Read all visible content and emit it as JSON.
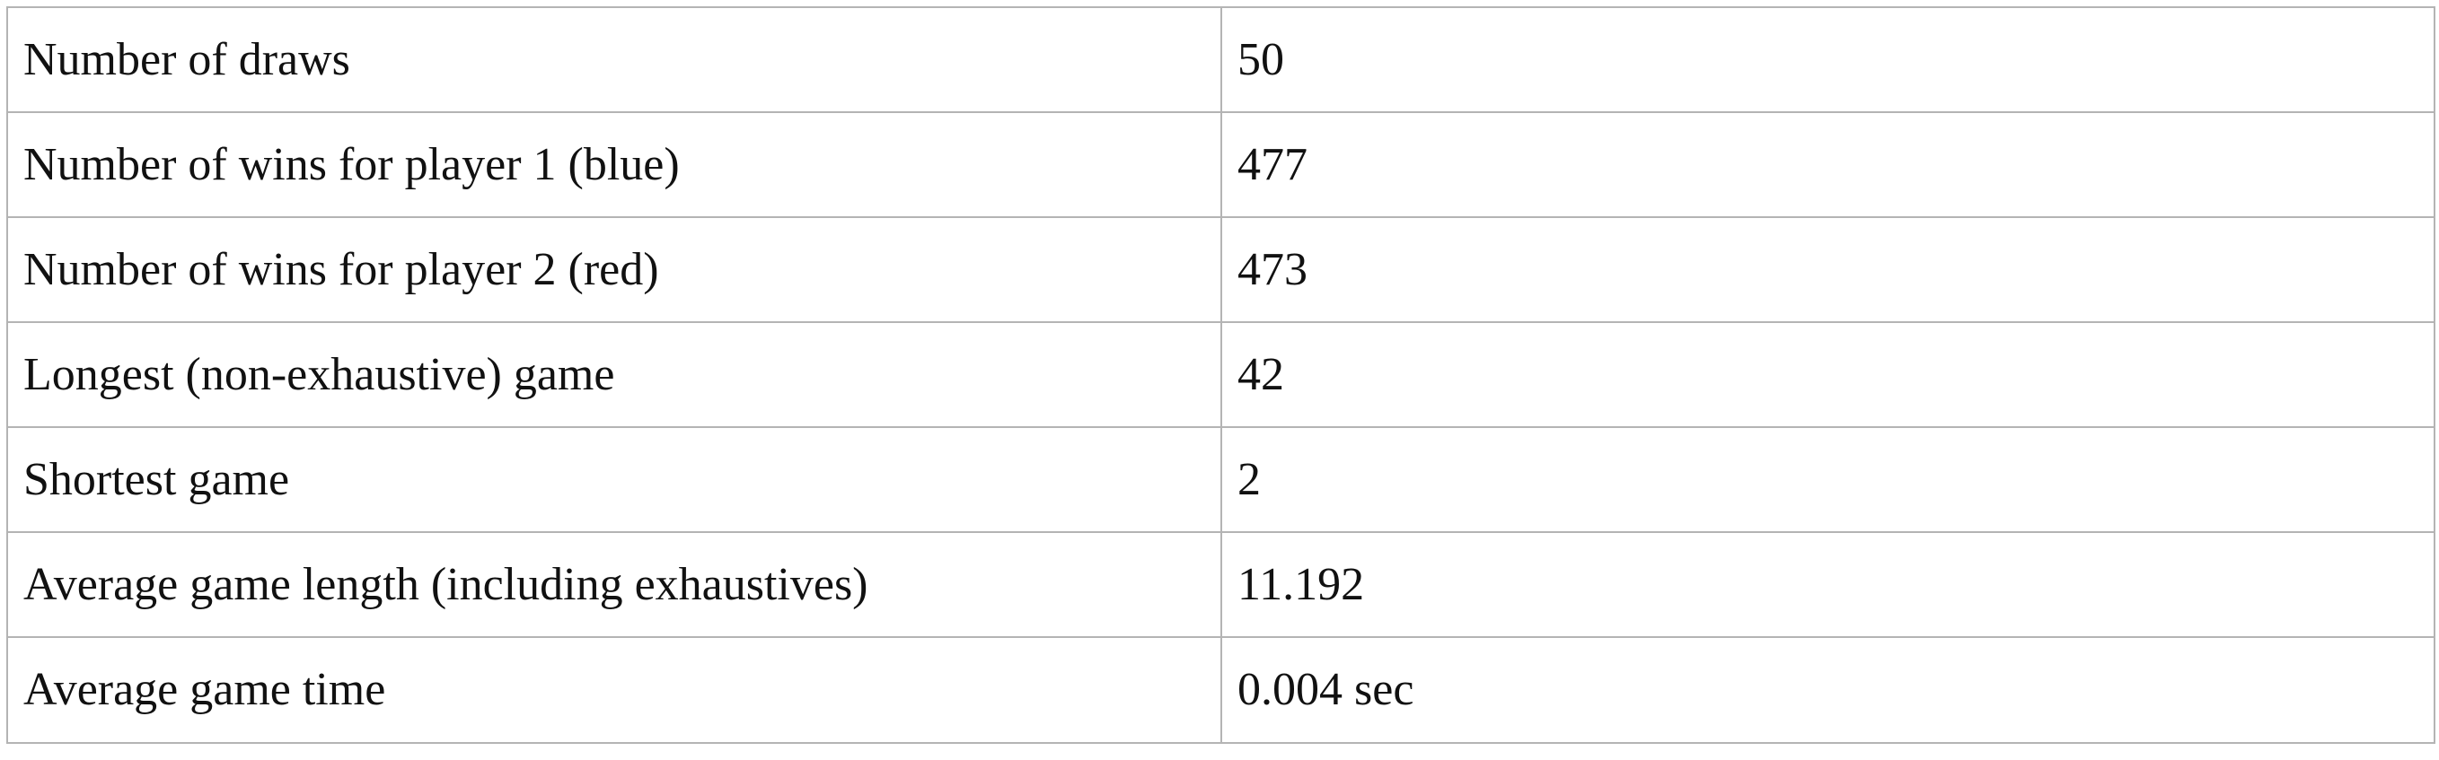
{
  "table": {
    "rows": [
      {
        "label": "Number of draws",
        "value": "50"
      },
      {
        "label": "Number of wins for player 1 (blue)",
        "value": "477"
      },
      {
        "label": "Number of wins for player 2 (red)",
        "value": "473"
      },
      {
        "label": "Longest (non-exhaustive) game",
        "value": "42"
      },
      {
        "label": "Shortest game",
        "value": "2"
      },
      {
        "label": "Average game length (including exhaustives)",
        "value": "11.192"
      },
      {
        "label": "Average game time",
        "value": "0.004 sec"
      }
    ]
  }
}
